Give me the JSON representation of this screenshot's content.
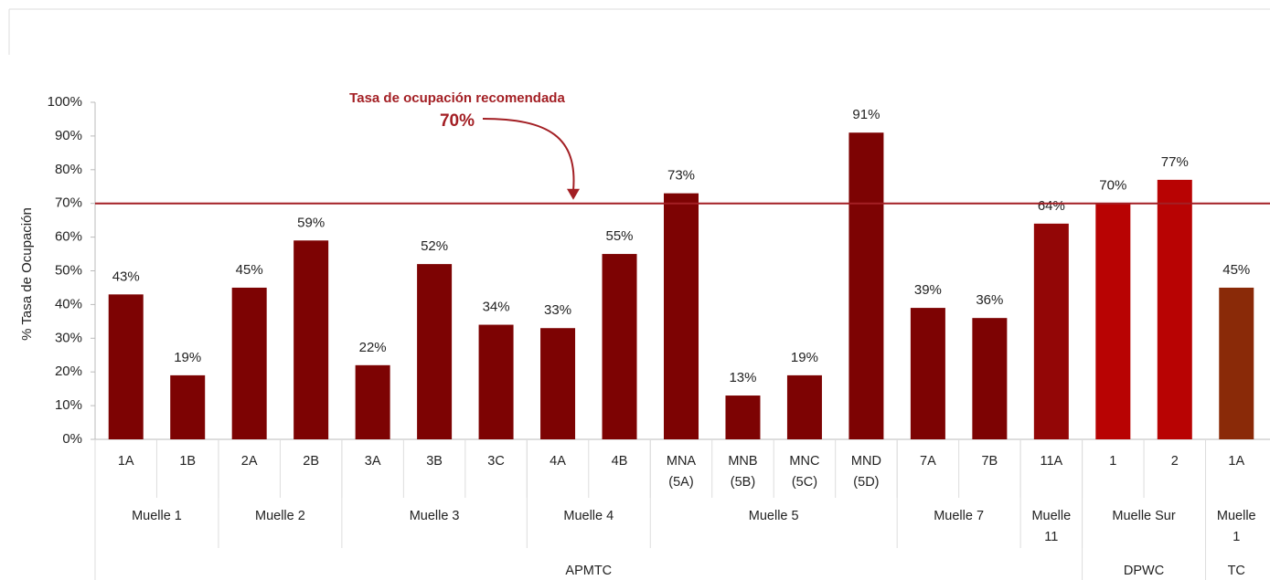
{
  "chart_data": {
    "type": "bar",
    "y_label": "% Tasa de Ocupación",
    "categories": [
      "1A",
      "1B",
      "2A",
      "2B",
      "3A",
      "3B",
      "3C",
      "4A",
      "4B",
      "MNA (5A)",
      "MNB (5B)",
      "MNC (5C)",
      "MND (5D)",
      "7A",
      "7B",
      "11A",
      "1",
      "2",
      "1A"
    ],
    "values": [
      43,
      19,
      45,
      59,
      22,
      52,
      34,
      33,
      55,
      73,
      13,
      19,
      91,
      39,
      36,
      64,
      70,
      77,
      45
    ],
    "value_labels": [
      "43%",
      "19%",
      "45%",
      "59%",
      "22%",
      "52%",
      "34%",
      "33%",
      "55%",
      "73%",
      "13%",
      "19%",
      "91%",
      "39%",
      "36%",
      "64%",
      "70%",
      "77%",
      "45%"
    ],
    "colors": [
      "#7d0303",
      "#7d0303",
      "#7d0303",
      "#7d0303",
      "#7d0303",
      "#7d0303",
      "#7d0303",
      "#7d0303",
      "#7d0303",
      "#7d0303",
      "#7d0303",
      "#7d0303",
      "#7d0303",
      "#7d0303",
      "#7d0303",
      "#930606",
      "#b80303",
      "#b80303",
      "#8a2a08"
    ],
    "groups": [
      {
        "name": "Muelle 1",
        "span": 2
      },
      {
        "name": "Muelle 2",
        "span": 2
      },
      {
        "name": "Muelle 3",
        "span": 3
      },
      {
        "name": "Muelle 4",
        "span": 2
      },
      {
        "name": "Muelle 5",
        "span": 4
      },
      {
        "name": "Muelle 7",
        "span": 2
      },
      {
        "name": "Muelle 11",
        "span": 1
      },
      {
        "name": "Muelle Sur",
        "span": 2
      },
      {
        "name": "Muelle 1",
        "span": 1
      }
    ],
    "supergroups": [
      {
        "name": "APMTC",
        "span": 16
      },
      {
        "name": "DPWC",
        "span": 2
      },
      {
        "name": "TC",
        "span": 1
      }
    ],
    "reference_line": {
      "value": 70,
      "title": "Tasa de ocupación recomendada",
      "label": "70%",
      "color": "#a31f24"
    },
    "ylim": [
      0,
      100
    ],
    "yticks": [
      {
        "value": 0,
        "label": "0%"
      },
      {
        "value": 10,
        "label": "10%"
      },
      {
        "value": 20,
        "label": "20%"
      },
      {
        "value": 30,
        "label": "30%"
      },
      {
        "value": 40,
        "label": "40%"
      },
      {
        "value": 50,
        "label": "50%"
      },
      {
        "value": 60,
        "label": "60%"
      },
      {
        "value": 70,
        "label": "70%"
      },
      {
        "value": 80,
        "label": "80%"
      },
      {
        "value": 90,
        "label": "90%"
      },
      {
        "value": 100,
        "label": "100%"
      }
    ]
  }
}
